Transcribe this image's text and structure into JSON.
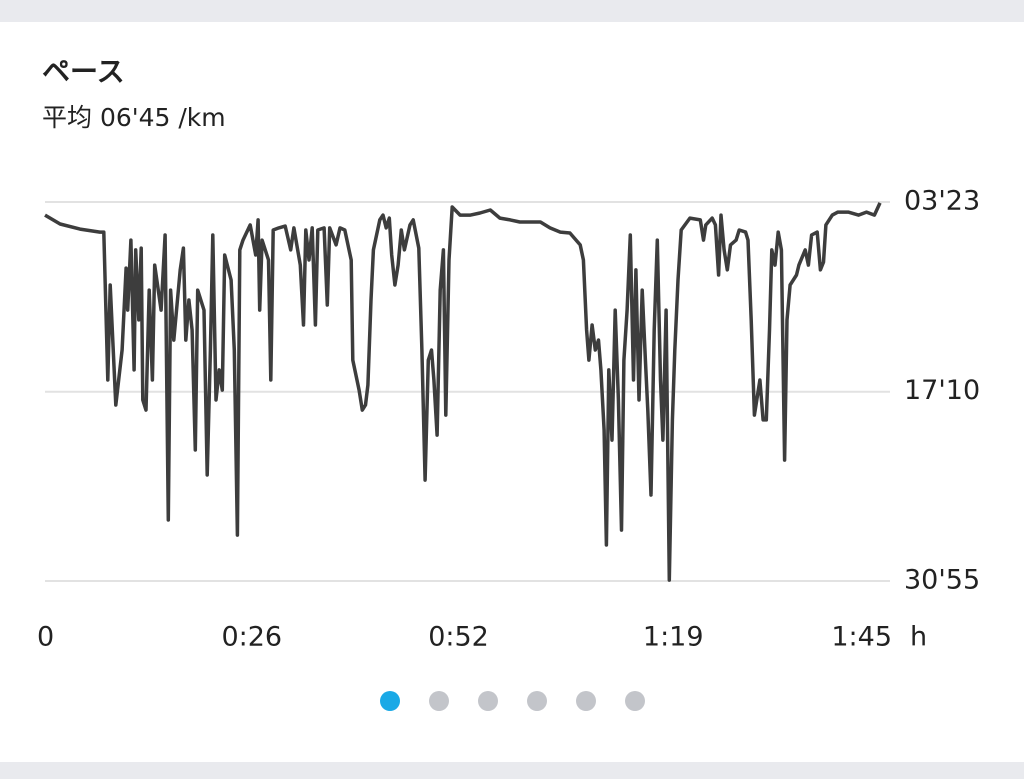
{
  "chart_data": {
    "type": "line",
    "title": "ペース",
    "subtitle": "平均 06'45 /km",
    "x_label": "h",
    "color": "#3d3d3d",
    "x": [
      0,
      1.9,
      4.4,
      6.9,
      7.4,
      7.9,
      8.2,
      8.9,
      9.7,
      10.2,
      10.4,
      10.8,
      11.2,
      11.4,
      11.8,
      12.1,
      12.3,
      12.7,
      13.1,
      13.5,
      13.8,
      14.6,
      15.1,
      15.5,
      15.8,
      16.2,
      17.0,
      17.4,
      17.7,
      18.1,
      18.5,
      18.9,
      19.2,
      20.0,
      20.4,
      20.8,
      21.1,
      21.5,
      21.9,
      22.3,
      22.6,
      23.4,
      23.8,
      24.2,
      24.5,
      24.9,
      25.8,
      26.5,
      26.8,
      27.0,
      27.3,
      28.1,
      28.4,
      28.7,
      29.4,
      30.2,
      30.9,
      31.3,
      32.1,
      32.5,
      32.8,
      33.2,
      33.6,
      34.0,
      34.3,
      35.1,
      35.5,
      35.8,
      36.6,
      37.1,
      37.7,
      38.5,
      38.7,
      39.5,
      39.9,
      40.3,
      40.6,
      41.0,
      41.3,
      42.1,
      42.5,
      42.9,
      43.3,
      43.6,
      44.0,
      44.4,
      44.8,
      45.2,
      45.9,
      46.3,
      47.0,
      47.4,
      47.8,
      48.2,
      48.6,
      48.9,
      49.3,
      49.7,
      50.1,
      50.4,
      50.8,
      51.2,
      52.2,
      53.5,
      54.7,
      56.0,
      57.2,
      58.5,
      59.7,
      61.0,
      62.3,
      63.5,
      64.8,
      66.0,
      67.3,
      67.7,
      68.1,
      68.4,
      68.8,
      69.2,
      69.6,
      69.9,
      70.3,
      70.6,
      70.9,
      71.3,
      71.7,
      72.1,
      72.5,
      72.8,
      73.2,
      73.6,
      74.0,
      74.3,
      74.7,
      75.1,
      75.5,
      75.8,
      76.2,
      76.6,
      77.0,
      77.4,
      77.7,
      78.1,
      78.5,
      78.9,
      79.2,
      79.6,
      80.0,
      81.1,
      82.4,
      82.8,
      83.1,
      83.9,
      84.3,
      84.7,
      85.0,
      85.4,
      85.8,
      86.2,
      86.9,
      87.3,
      88.1,
      88.4,
      88.8,
      89.2,
      89.9,
      90.3,
      90.7,
      91.1,
      91.4,
      91.8,
      92.2,
      92.6,
      93.0,
      93.3,
      93.7,
      94.5,
      94.8,
      95.6,
      96.0,
      96.4,
      97.1,
      97.5,
      97.9,
      98.2,
      99.0,
      99.7,
      101.0,
      102.3,
      103.3,
      104.3,
      105.0
    ],
    "values": [
      260,
      299,
      321,
      334,
      334,
      979,
      565,
      1088,
      848,
      491,
      674,
      369,
      935,
      412,
      717,
      404,
      1066,
      1110,
      587,
      979,
      478,
      674,
      347,
      1589,
      587,
      805,
      499,
      404,
      805,
      630,
      761,
      1284,
      587,
      674,
      1393,
      848,
      347,
      1066,
      935,
      1023,
      434,
      543,
      848,
      1655,
      412,
      369,
      303,
      434,
      281,
      674,
      369,
      456,
      979,
      325,
      316,
      308,
      412,
      316,
      478,
      739,
      325,
      456,
      316,
      739,
      325,
      316,
      652,
      316,
      390,
      316,
      325,
      456,
      892,
      1023,
      1110,
      1088,
      1001,
      630,
      412,
      281,
      260,
      316,
      273,
      434,
      565,
      478,
      325,
      412,
      303,
      281,
      404,
      848,
      1415,
      892,
      848,
      979,
      1219,
      587,
      412,
      1132,
      456,
      225,
      260,
      260,
      251,
      238,
      273,
      281,
      290,
      290,
      290,
      316,
      334,
      338,
      390,
      456,
      761,
      892,
      739,
      848,
      805,
      935,
      1197,
      1698,
      935,
      1241,
      674,
      1066,
      1633,
      892,
      674,
      347,
      979,
      499,
      1066,
      587,
      892,
      1110,
      1480,
      761,
      369,
      979,
      1241,
      674,
      1851,
      1153,
      848,
      543,
      325,
      273,
      281,
      369,
      303,
      273,
      303,
      521,
      260,
      412,
      499,
      390,
      369,
      325,
      334,
      369,
      717,
      1132,
      979,
      1153,
      1153,
      761,
      412,
      478,
      334,
      412,
      1328,
      717,
      565,
      521,
      478,
      412,
      478,
      347,
      334,
      499,
      465,
      303,
      260,
      247,
      247,
      260,
      247,
      260,
      207
    ],
    "xlim": [
      0,
      105
    ],
    "xticks": [
      0,
      {
        "value": 26,
        "label": "0:26"
      },
      {
        "value": 52,
        "label": "0:52"
      },
      {
        "value": 79,
        "label": "1:19"
      },
      {
        "value": 105,
        "label": "1:45"
      }
    ],
    "ylim": [
      1855,
      203
    ],
    "yticks": [
      {
        "value": 203,
        "label": "03'23"
      },
      {
        "value": 1030,
        "label": "17'10"
      },
      {
        "value": 1855,
        "label": "30'55"
      }
    ],
    "grid": true
  }
}
